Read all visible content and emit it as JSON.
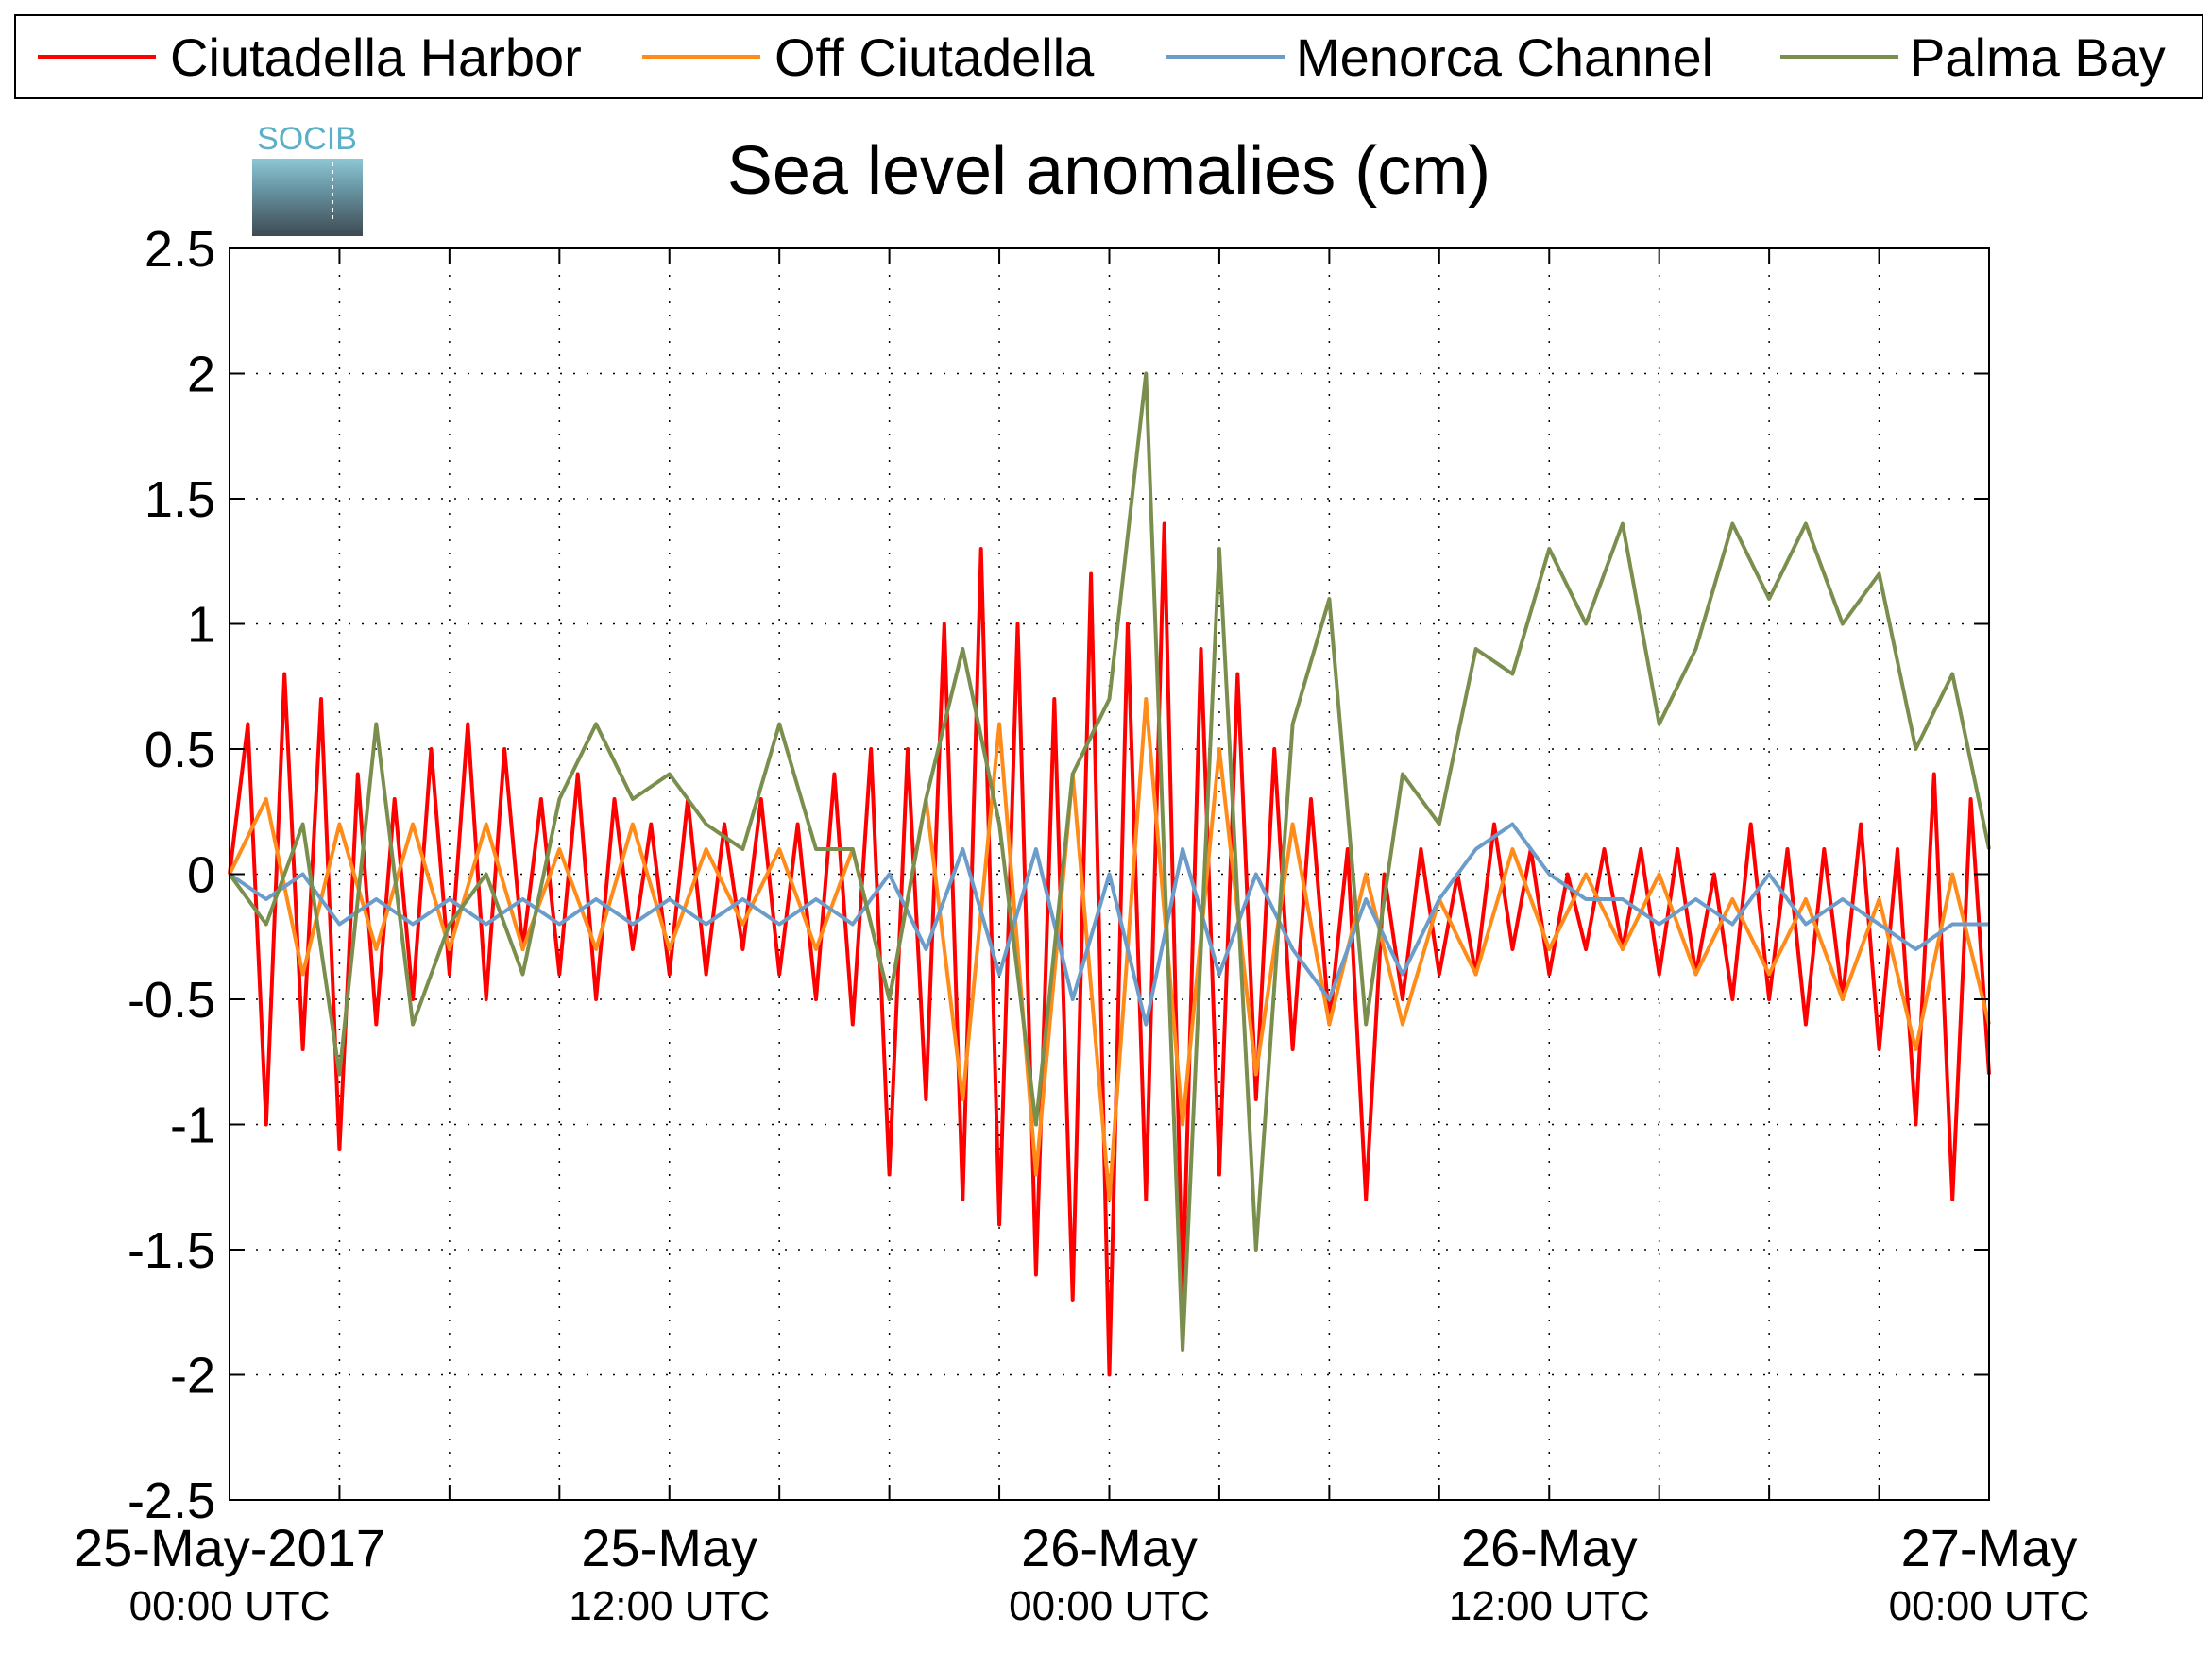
{
  "chart_data": {
    "type": "line",
    "title": "Sea level anomalies (cm)",
    "logo_text": "SOCIB",
    "xlabel": "",
    "ylabel": "",
    "ylim": [
      -2.5,
      2.5
    ],
    "y_ticks": [
      "2.5",
      "2",
      "1.5",
      "1",
      "0.5",
      "0",
      "-0.5",
      "-1",
      "-1.5",
      "-2",
      "-2.5"
    ],
    "x_range_hours": [
      0,
      48
    ],
    "x_tick_labels": [
      {
        "date": "25-May-2017",
        "time": "00:00 UTC"
      },
      {
        "date": "25-May",
        "time": "12:00 UTC"
      },
      {
        "date": "26-May",
        "time": "00:00 UTC"
      },
      {
        "date": "26-May",
        "time": "12:00 UTC"
      },
      {
        "date": "27-May",
        "time": "00:00 UTC"
      }
    ],
    "grid": true,
    "legend_position": "top",
    "series": [
      {
        "name": "Ciutadella Harbor",
        "color": "#ff0000",
        "x": [
          0,
          0.5,
          1,
          1.5,
          2,
          2.5,
          3,
          3.5,
          4,
          4.5,
          5,
          5.5,
          6,
          6.5,
          7,
          7.5,
          8,
          8.5,
          9,
          9.5,
          10,
          10.5,
          11,
          11.5,
          12,
          12.5,
          13,
          13.5,
          14,
          14.5,
          15,
          15.5,
          16,
          16.5,
          17,
          17.5,
          18,
          18.5,
          19,
          19.5,
          20,
          20.5,
          21,
          21.5,
          22,
          22.5,
          23,
          23.5,
          24,
          24.5,
          25,
          25.5,
          26,
          26.5,
          27,
          27.5,
          28,
          28.5,
          29,
          29.5,
          30,
          30.5,
          31,
          31.5,
          32,
          32.5,
          33,
          33.5,
          34,
          34.5,
          35,
          35.5,
          36,
          36.5,
          37,
          37.5,
          38,
          38.5,
          39,
          39.5,
          40,
          40.5,
          41,
          41.5,
          42,
          42.5,
          43,
          43.5,
          44,
          44.5,
          45,
          45.5,
          46,
          46.5,
          47,
          47.5,
          48
        ],
        "y": [
          0.0,
          0.6,
          -1.0,
          0.8,
          -0.7,
          0.7,
          -1.1,
          0.4,
          -0.6,
          0.3,
          -0.5,
          0.5,
          -0.4,
          0.6,
          -0.5,
          0.5,
          -0.3,
          0.3,
          -0.4,
          0.4,
          -0.5,
          0.3,
          -0.3,
          0.2,
          -0.4,
          0.3,
          -0.4,
          0.2,
          -0.3,
          0.3,
          -0.4,
          0.2,
          -0.5,
          0.4,
          -0.6,
          0.5,
          -1.2,
          0.5,
          -0.9,
          1.0,
          -1.3,
          1.3,
          -1.4,
          1.0,
          -1.6,
          0.7,
          -1.7,
          1.2,
          -2.0,
          1.0,
          -1.3,
          1.4,
          -1.7,
          0.9,
          -1.2,
          0.8,
          -0.9,
          0.5,
          -0.7,
          0.3,
          -0.6,
          0.1,
          -1.3,
          0.0,
          -0.5,
          0.1,
          -0.4,
          0.0,
          -0.4,
          0.2,
          -0.3,
          0.1,
          -0.4,
          0.0,
          -0.3,
          0.1,
          -0.3,
          0.1,
          -0.4,
          0.1,
          -0.4,
          0.0,
          -0.5,
          0.2,
          -0.5,
          0.1,
          -0.6,
          0.1,
          -0.5,
          0.2,
          -0.7,
          0.1,
          -1.0,
          0.4,
          -1.3,
          0.3,
          -0.8
        ]
      },
      {
        "name": "Off Ciutadella",
        "color": "#ff8c1a",
        "x": [
          0,
          1,
          2,
          3,
          4,
          5,
          6,
          7,
          8,
          9,
          10,
          11,
          12,
          13,
          14,
          15,
          16,
          17,
          18,
          19,
          20,
          21,
          22,
          23,
          24,
          25,
          26,
          27,
          28,
          29,
          30,
          31,
          32,
          33,
          34,
          35,
          36,
          37,
          38,
          39,
          40,
          41,
          42,
          43,
          44,
          45,
          46,
          47,
          48
        ],
        "y": [
          0.0,
          0.3,
          -0.4,
          0.2,
          -0.3,
          0.2,
          -0.3,
          0.2,
          -0.3,
          0.1,
          -0.3,
          0.2,
          -0.3,
          0.1,
          -0.2,
          0.1,
          -0.3,
          0.1,
          -0.5,
          0.3,
          -0.9,
          0.6,
          -1.2,
          0.4,
          -1.3,
          0.7,
          -1.0,
          0.5,
          -0.8,
          0.2,
          -0.6,
          0.0,
          -0.6,
          -0.1,
          -0.4,
          0.1,
          -0.3,
          0.0,
          -0.3,
          0.0,
          -0.4,
          -0.1,
          -0.4,
          -0.1,
          -0.5,
          -0.1,
          -0.7,
          0.0,
          -0.6
        ]
      },
      {
        "name": "Menorca Channel",
        "color": "#6c9cc9",
        "x": [
          0,
          1,
          2,
          3,
          4,
          5,
          6,
          7,
          8,
          9,
          10,
          11,
          12,
          13,
          14,
          15,
          16,
          17,
          18,
          19,
          20,
          21,
          22,
          23,
          24,
          25,
          26,
          27,
          28,
          29,
          30,
          31,
          32,
          33,
          34,
          35,
          36,
          37,
          38,
          39,
          40,
          41,
          42,
          43,
          44,
          45,
          46,
          47,
          48
        ],
        "y": [
          0.0,
          -0.1,
          0.0,
          -0.2,
          -0.1,
          -0.2,
          -0.1,
          -0.2,
          -0.1,
          -0.2,
          -0.1,
          -0.2,
          -0.1,
          -0.2,
          -0.1,
          -0.2,
          -0.1,
          -0.2,
          0.0,
          -0.3,
          0.1,
          -0.4,
          0.1,
          -0.5,
          0.0,
          -0.6,
          0.1,
          -0.4,
          0.0,
          -0.3,
          -0.5,
          -0.1,
          -0.4,
          -0.1,
          0.1,
          0.2,
          0.0,
          -0.1,
          -0.1,
          -0.2,
          -0.1,
          -0.2,
          0.0,
          -0.2,
          -0.1,
          -0.2,
          -0.3,
          -0.2,
          -0.2
        ]
      },
      {
        "name": "Palma Bay",
        "color": "#7a8f4e",
        "x": [
          0,
          1,
          2,
          3,
          4,
          5,
          6,
          7,
          8,
          9,
          10,
          11,
          12,
          13,
          14,
          15,
          16,
          17,
          18,
          19,
          20,
          21,
          22,
          23,
          24,
          25,
          26,
          27,
          28,
          29,
          30,
          31,
          32,
          33,
          34,
          35,
          36,
          37,
          38,
          39,
          40,
          41,
          42,
          43,
          44,
          45,
          46,
          47,
          48
        ],
        "y": [
          0.0,
          -0.2,
          0.2,
          -0.8,
          0.6,
          -0.6,
          -0.2,
          0.0,
          -0.4,
          0.3,
          0.6,
          0.3,
          0.4,
          0.2,
          0.1,
          0.6,
          0.1,
          0.1,
          -0.5,
          0.3,
          0.9,
          0.2,
          -1.0,
          0.4,
          0.7,
          2.0,
          -1.9,
          1.3,
          -1.5,
          0.6,
          1.1,
          -0.6,
          0.4,
          0.2,
          0.9,
          0.8,
          1.3,
          1.0,
          1.4,
          0.6,
          0.9,
          1.4,
          1.1,
          1.4,
          1.0,
          1.2,
          0.5,
          0.8,
          0.1
        ]
      }
    ]
  }
}
